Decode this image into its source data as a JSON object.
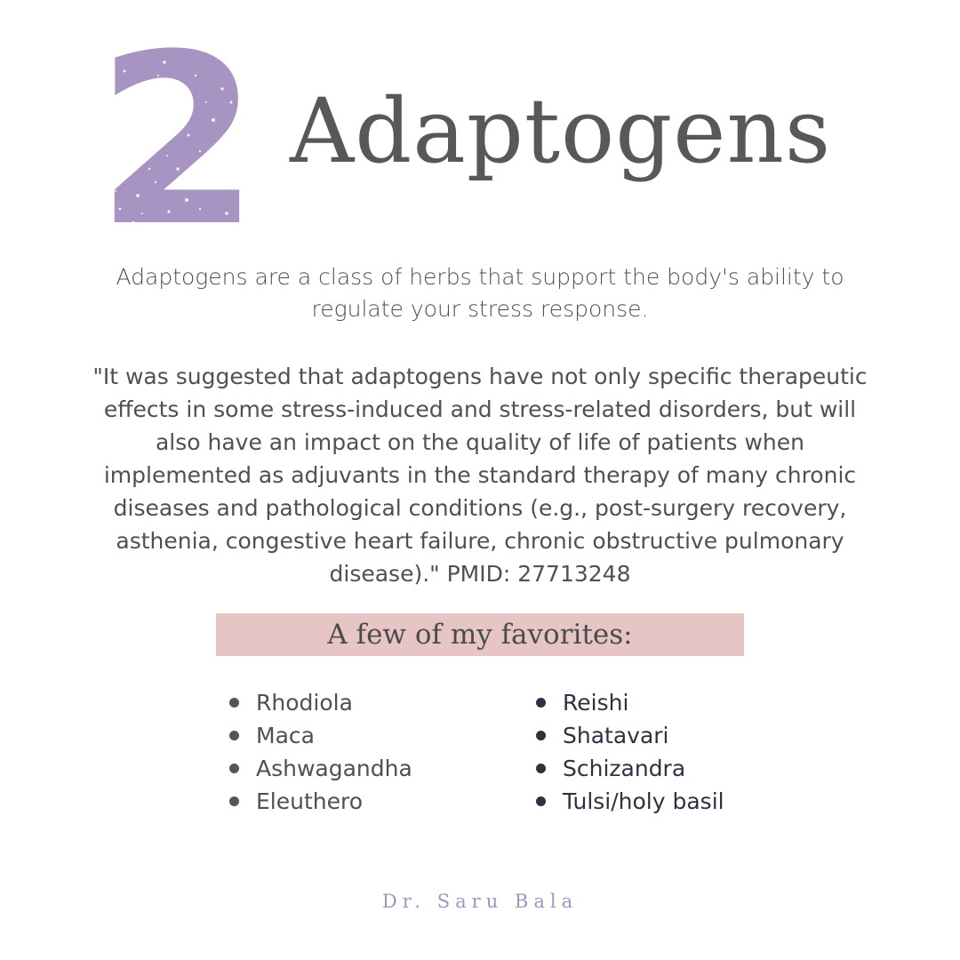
{
  "header": {
    "number": "2",
    "title": "Adaptogens"
  },
  "intro": {
    "text": "Adaptogens are a class of herbs that support the body's ability to regulate your stress response."
  },
  "quote": {
    "text": "\"It was suggested that adaptogens have not only specific therapeutic effects in some stress-induced and stress-related disorders, but will also have an impact on the quality of life of patients when implemented as adjuvants in the standard therapy of many chronic diseases and pathological conditions (e.g., post-surgery recovery, asthenia, congestive heart failure, chronic obstructive pulmonary disease).\" PMID: 27713248"
  },
  "favorites": {
    "heading": "A few of my favorites:",
    "left": [
      "Rhodiola",
      "Maca",
      "Ashwagandha",
      "Eleuthero"
    ],
    "right": [
      "Reishi",
      "Shatavari",
      "Schizandra",
      "Tulsi/holy basil"
    ]
  },
  "footer": {
    "signature": "Dr. Saru Bala"
  },
  "colors": {
    "number_fill": "#a794c2",
    "banner_bg": "#e8c5c5",
    "signature": "#a592c2",
    "text": "#505053"
  }
}
